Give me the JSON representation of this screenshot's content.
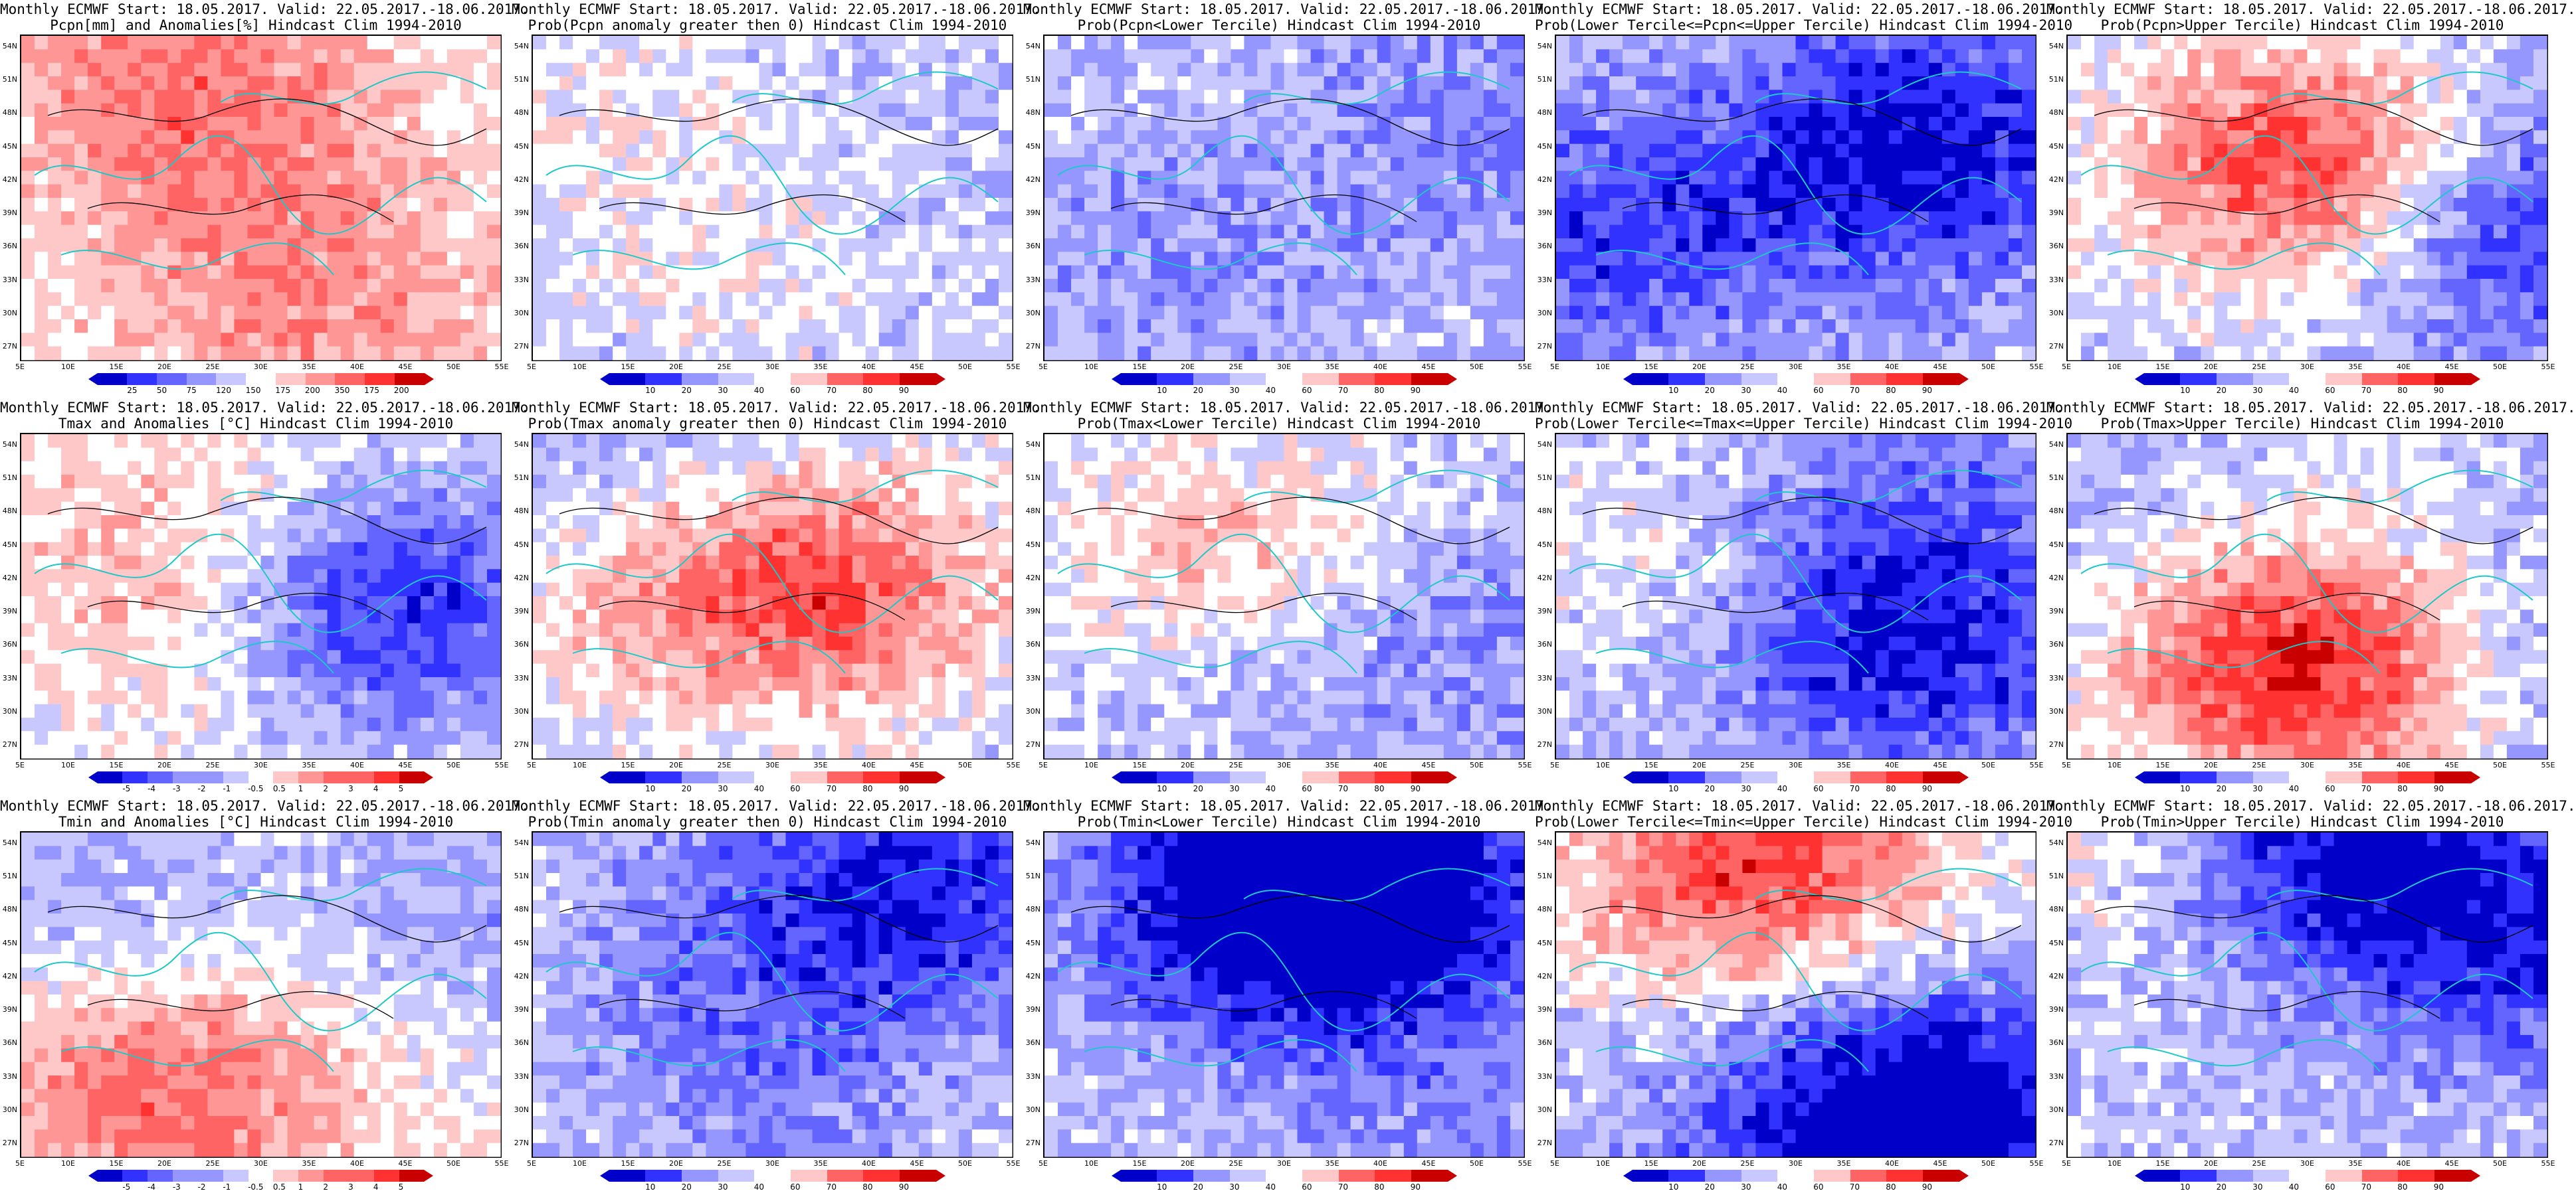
{
  "lat_labels": [
    "54N",
    "51N",
    "48N",
    "45N",
    "42N",
    "39N",
    "36N",
    "33N",
    "30N",
    "27N"
  ],
  "lon_labels": [
    "5E",
    "10E",
    "15E",
    "20E",
    "25E",
    "30E",
    "35E",
    "40E",
    "45E",
    "50E",
    "55E"
  ],
  "panels": [
    {
      "line1": "Monthly ECMWF Start: 18.05.2017. Valid: 22.05.2017.-18.06.2017.",
      "line2": "Pcpn[mm] and Anomalies[%] Hindcast Clim 1994-2010",
      "ticks": [
        "25",
        "50",
        "75",
        "120",
        "150",
        "175",
        "200",
        "350",
        "175",
        "200"
      ],
      "scale": "anom",
      "seed": 1
    },
    {
      "line1": "Monthly ECMWF Start: 18.05.2017. Valid: 22.05.2017.-18.06.2017.",
      "line2": "Prob(Pcpn anomaly greater then 0) Hindcast Clim 1994-2010",
      "ticks": [
        "10",
        "20",
        "30",
        "40",
        "60",
        "70",
        "80",
        "90"
      ],
      "scale": "prob",
      "seed": 2
    },
    {
      "line1": "Monthly ECMWF Start: 18.05.2017. Valid: 22.05.2017.-18.06.2017.",
      "line2": "Prob(Pcpn<Lower Tercile) Hindcast Clim 1994-2010",
      "ticks": [
        "10",
        "20",
        "30",
        "40",
        "60",
        "70",
        "80",
        "90"
      ],
      "scale": "prob",
      "seed": 3
    },
    {
      "line1": "Monthly ECMWF Start: 18.05.2017. Valid: 22.05.2017.-18.06.2017.",
      "line2": "Prob(Lower Tercile<=Pcpn<=Upper Tercile) Hindcast Clim 1994-2010",
      "ticks": [
        "10",
        "20",
        "30",
        "40",
        "60",
        "70",
        "80",
        "90"
      ],
      "scale": "prob",
      "seed": 4
    },
    {
      "line1": "Monthly ECMWF Start: 18.05.2017. Valid: 22.05.2017.-18.06.2017.",
      "line2": "Prob(Pcpn>Upper Tercile) Hindcast Clim 1994-2010",
      "ticks": [
        "10",
        "20",
        "30",
        "40",
        "60",
        "70",
        "80",
        "90"
      ],
      "scale": "prob",
      "seed": 5
    },
    {
      "line1": "Monthly ECMWF Start: 18.05.2017. Valid: 22.05.2017.-18.06.2017.",
      "line2": "Tmax and Anomalies [°C] Hindcast Clim 1994-2010",
      "ticks": [
        "-5",
        "-4",
        "-3",
        "-2",
        "-1",
        "-0.5",
        "0.5",
        "1",
        "2",
        "3",
        "4",
        "5"
      ],
      "scale": "anom",
      "seed": 6
    },
    {
      "line1": "Monthly ECMWF Start: 18.05.2017. Valid: 22.05.2017.-18.06.2017.",
      "line2": "Prob(Tmax anomaly greater then 0) Hindcast Clim 1994-2010",
      "ticks": [
        "10",
        "20",
        "30",
        "40",
        "60",
        "70",
        "80",
        "90"
      ],
      "scale": "prob",
      "seed": 7
    },
    {
      "line1": "Monthly ECMWF Start: 18.05.2017. Valid: 22.05.2017.-18.06.2017.",
      "line2": "Prob(Tmax<Lower Tercile) Hindcast Clim 1994-2010",
      "ticks": [
        "10",
        "20",
        "30",
        "40",
        "60",
        "70",
        "80",
        "90"
      ],
      "scale": "prob",
      "seed": 8
    },
    {
      "line1": "Monthly ECMWF Start: 18.05.2017. Valid: 22.05.2017.-18.06.2017.",
      "line2": "Prob(Lower Tercile<=Tmax<=Upper Tercile) Hindcast Clim 1994-2010",
      "ticks": [
        "10",
        "20",
        "30",
        "40",
        "60",
        "70",
        "80",
        "90"
      ],
      "scale": "prob",
      "seed": 9
    },
    {
      "line1": "Monthly ECMWF Start: 18.05.2017. Valid: 22.05.2017.-18.06.2017.",
      "line2": "Prob(Tmax>Upper Tercile) Hindcast Clim 1994-2010",
      "ticks": [
        "10",
        "20",
        "30",
        "40",
        "60",
        "70",
        "80",
        "90"
      ],
      "scale": "prob",
      "seed": 10
    },
    {
      "line1": "Monthly ECMWF Start: 18.05.2017. Valid: 22.05.2017.-18.06.2017.",
      "line2": "Tmin and Anomalies [°C] Hindcast Clim 1994-2010",
      "ticks": [
        "-5",
        "-4",
        "-3",
        "-2",
        "-1",
        "-0.5",
        "0.5",
        "1",
        "2",
        "3",
        "4",
        "5"
      ],
      "scale": "anom",
      "seed": 11
    },
    {
      "line1": "Monthly ECMWF Start: 18.05.2017. Valid: 22.05.2017.-18.06.2017.",
      "line2": "Prob(Tmin anomaly greater then 0) Hindcast Clim 1994-2010",
      "ticks": [
        "10",
        "20",
        "30",
        "40",
        "60",
        "70",
        "80",
        "90"
      ],
      "scale": "prob",
      "seed": 12
    },
    {
      "line1": "Monthly ECMWF Start: 18.05.2017. Valid: 22.05.2017.-18.06.2017.",
      "line2": "Prob(Tmin<Lower Tercile) Hindcast Clim 1994-2010",
      "ticks": [
        "10",
        "20",
        "30",
        "40",
        "60",
        "70",
        "80",
        "90"
      ],
      "scale": "prob",
      "seed": 13
    },
    {
      "line1": "Monthly ECMWF Start: 18.05.2017. Valid: 22.05.2017.-18.06.2017.",
      "line2": "Prob(Lower Tercile<=Tmin<=Upper Tercile) Hindcast Clim 1994-2010",
      "ticks": [
        "10",
        "20",
        "30",
        "40",
        "60",
        "70",
        "80",
        "90"
      ],
      "scale": "prob",
      "seed": 14
    },
    {
      "line1": "Monthly ECMWF Start: 18.05.2017. Valid: 22.05.2017.-18.06.2017.",
      "line2": "Prob(Tmin>Upper Tercile) Hindcast Clim 1994-2010",
      "ticks": [
        "10",
        "20",
        "30",
        "40",
        "60",
        "70",
        "80",
        "90"
      ],
      "scale": "prob",
      "seed": 15
    }
  ],
  "colors": {
    "ramp": [
      "#0000c8",
      "#3232ff",
      "#6464ff",
      "#9696ff",
      "#c8c8ff",
      "#ffffff",
      "#ffc8c8",
      "#ff9696",
      "#ff6464",
      "#ff3232",
      "#c80000"
    ],
    "coast": "#1ec8c8",
    "contour": "#000000"
  }
}
